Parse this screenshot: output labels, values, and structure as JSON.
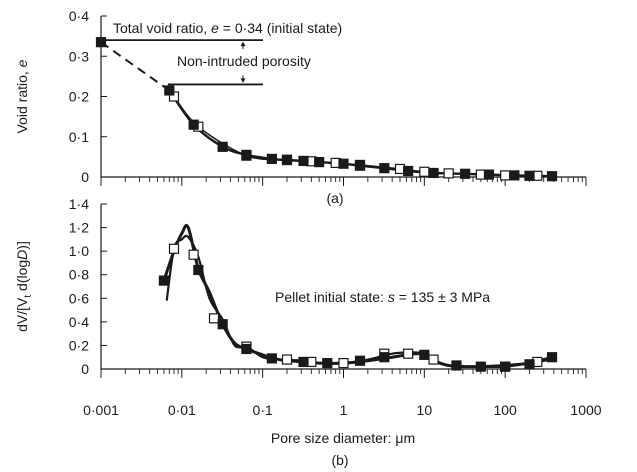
{
  "chart_data": [
    {
      "type": "line",
      "panel_label": "(a)",
      "x_scale": "log",
      "xlim": [
        0.001,
        1000
      ],
      "ylim": [
        0,
        0.4
      ],
      "ylabel": {
        "text": "Void ratio, ",
        "italic": "e"
      },
      "x_tick_labels": [],
      "y_ticks": [
        0,
        0.1,
        0.2,
        0.3,
        0.4
      ],
      "y_tick_labels": [
        "0",
        "0·1",
        "0·2",
        "0·3",
        "0·4"
      ],
      "annotations": {
        "total_prefix": "Total void ratio, ",
        "total_italic": "e",
        "total_suffix": " = 0·34 (initial state)",
        "total_value": 0.34,
        "non_intruded": "Non-intruded porosity",
        "non_intruded_level": 0.23
      },
      "dashed_segment": {
        "x": [
          0.001,
          0.007
        ],
        "y": [
          0.335,
          0.215
        ]
      },
      "series": [
        {
          "marker": "filled-square",
          "x": [
            0.001,
            0.007,
            0.014,
            0.032,
            0.063,
            0.13,
            0.2,
            0.32,
            0.5,
            1,
            1.6,
            3.2,
            6.3,
            13,
            32,
            63,
            130,
            200,
            380
          ],
          "y": [
            0.335,
            0.215,
            0.13,
            0.075,
            0.055,
            0.045,
            0.042,
            0.04,
            0.037,
            0.033,
            0.028,
            0.022,
            0.015,
            0.01,
            0.008,
            0.006,
            0.004,
            0.003,
            0.002
          ]
        },
        {
          "marker": "open-square",
          "x": [
            0.008,
            0.016,
            0.063,
            0.2,
            0.4,
            0.8,
            1.6,
            5,
            10,
            20,
            50,
            100,
            250
          ],
          "y": [
            0.2,
            0.125,
            0.053,
            0.043,
            0.039,
            0.035,
            0.03,
            0.02,
            0.013,
            0.009,
            0.006,
            0.004,
            0.003
          ]
        }
      ]
    },
    {
      "type": "line",
      "panel_label": "(b)",
      "x_scale": "log",
      "xlim": [
        0.001,
        1000
      ],
      "ylim": [
        0,
        1.4
      ],
      "xlabel": "Pore size diameter: μm",
      "ylabel": {
        "p1": "dV/[V",
        "sub": "t",
        "p2": " d(log",
        "italic": "D",
        "p3": ")]"
      },
      "x_ticks": [
        0.001,
        0.01,
        0.1,
        1,
        10,
        100,
        1000
      ],
      "x_tick_labels": [
        "0·001",
        "0·01",
        "0·1",
        "1",
        "10",
        "100",
        "1000"
      ],
      "y_ticks": [
        0,
        0.2,
        0.4,
        0.6,
        0.8,
        1.0,
        1.2,
        1.4
      ],
      "y_tick_labels": [
        "0",
        "0·2",
        "0·4",
        "0·6",
        "0·8",
        "1·0",
        "1·2",
        "1·4"
      ],
      "annotations": {
        "state_prefix": "Pellet initial state: ",
        "state_italic": "s",
        "state_suffix": " = 135 ± 3 MPa"
      },
      "series": [
        {
          "marker": "filled-square",
          "x": [
            0.006,
            0.008,
            0.01,
            0.012,
            0.016,
            0.022,
            0.032,
            0.045,
            0.063,
            0.1,
            0.16,
            0.32,
            0.5,
            1,
            2,
            4,
            6,
            8,
            10,
            13,
            20,
            40,
            100,
            200,
            380
          ],
          "y": [
            0.75,
            1.0,
            1.15,
            1.2,
            0.85,
            0.65,
            0.38,
            0.22,
            0.17,
            0.12,
            0.08,
            0.06,
            0.05,
            0.05,
            0.07,
            0.1,
            0.12,
            0.13,
            0.12,
            0.07,
            0.03,
            0.02,
            0.03,
            0.05,
            0.1
          ]
        },
        {
          "marker": "open-square",
          "x": [
            0.0065,
            0.008,
            0.01,
            0.012,
            0.016,
            0.022,
            0.032,
            0.045,
            0.063,
            0.1,
            0.16,
            0.32,
            0.5,
            1,
            2,
            4,
            6,
            8,
            10,
            13,
            20,
            40,
            100,
            200,
            380
          ],
          "y": [
            0.58,
            1.02,
            1.1,
            1.12,
            0.95,
            0.6,
            0.42,
            0.2,
            0.19,
            0.1,
            0.08,
            0.07,
            0.05,
            0.05,
            0.08,
            0.13,
            0.14,
            0.14,
            0.13,
            0.08,
            0.03,
            0.02,
            0.02,
            0.05,
            0.08
          ]
        }
      ],
      "marker_points": {
        "filled": {
          "x": [
            0.006,
            0.016,
            0.032,
            0.063,
            0.13,
            0.32,
            0.63,
            1.6,
            3.2,
            10,
            25,
            50,
            100,
            200,
            380
          ],
          "y": [
            0.75,
            0.84,
            0.38,
            0.17,
            0.09,
            0.06,
            0.05,
            0.07,
            0.1,
            0.12,
            0.03,
            0.02,
            0.02,
            0.04,
            0.1
          ]
        },
        "open": {
          "x": [
            0.008,
            0.014,
            0.025,
            0.063,
            0.2,
            0.4,
            1,
            3.2,
            6.3,
            13,
            100,
            250
          ],
          "y": [
            1.02,
            0.97,
            0.43,
            0.19,
            0.08,
            0.06,
            0.05,
            0.13,
            0.13,
            0.08,
            0.02,
            0.06
          ]
        }
      }
    }
  ]
}
